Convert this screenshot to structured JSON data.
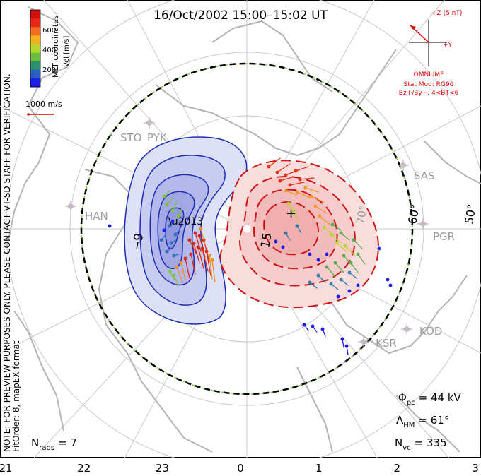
{
  "title": "16/Oct/2002 15:00–15:02 UT",
  "side_note_line1": "NOTE: FOR PREVIEW PURPOSES ONLY. PLEASE CONTACT VT-SD STAFF FOR VERIFICATION.",
  "side_note_line2": "FitOrder: 8, mapEX format",
  "coordinates_label": "MLT coordinates",
  "colorbar": {
    "label": "Vel [m/s]",
    "ticks": [
      "600",
      "400",
      "200"
    ],
    "colors": [
      "#1e1ee8",
      "#2a5fc4",
      "#2e8f6e",
      "#6cbf3a",
      "#b8d630",
      "#f0b020",
      "#f07020",
      "#e82818",
      "#d01010"
    ]
  },
  "scale_vector": "1000 m/s",
  "imf": {
    "z_label": "+Z (5 nT)",
    "y_label": "+Y",
    "source": "OMNI IMF",
    "model": "Stat Mod: RG96",
    "condition": "Bz+/By−, 4<BT<6"
  },
  "stations": [
    "STO",
    "PYK",
    "HAN",
    "SAS",
    "PGR",
    "KOD",
    "KSR"
  ],
  "latitude_labels": [
    "70°",
    "60°",
    "50°"
  ],
  "contour_labels": {
    "negative": "−9",
    "positive": "15"
  },
  "stats": {
    "phi_symbol": "Φ",
    "phi_sub": "pc",
    "phi_value": "= 44 kV",
    "lambda_symbol": "Λ",
    "lambda_sub": "HM",
    "lambda_value": "= 61°",
    "nvc_symbol": "N",
    "nvc_sub": "vc",
    "nvc_value": "= 335",
    "nrads_symbol": "N",
    "nrads_sub": "rads",
    "nrads_value": "= 7"
  },
  "mlt_axis": [
    "21",
    "22",
    "23",
    "0",
    "1",
    "2",
    "3"
  ]
}
